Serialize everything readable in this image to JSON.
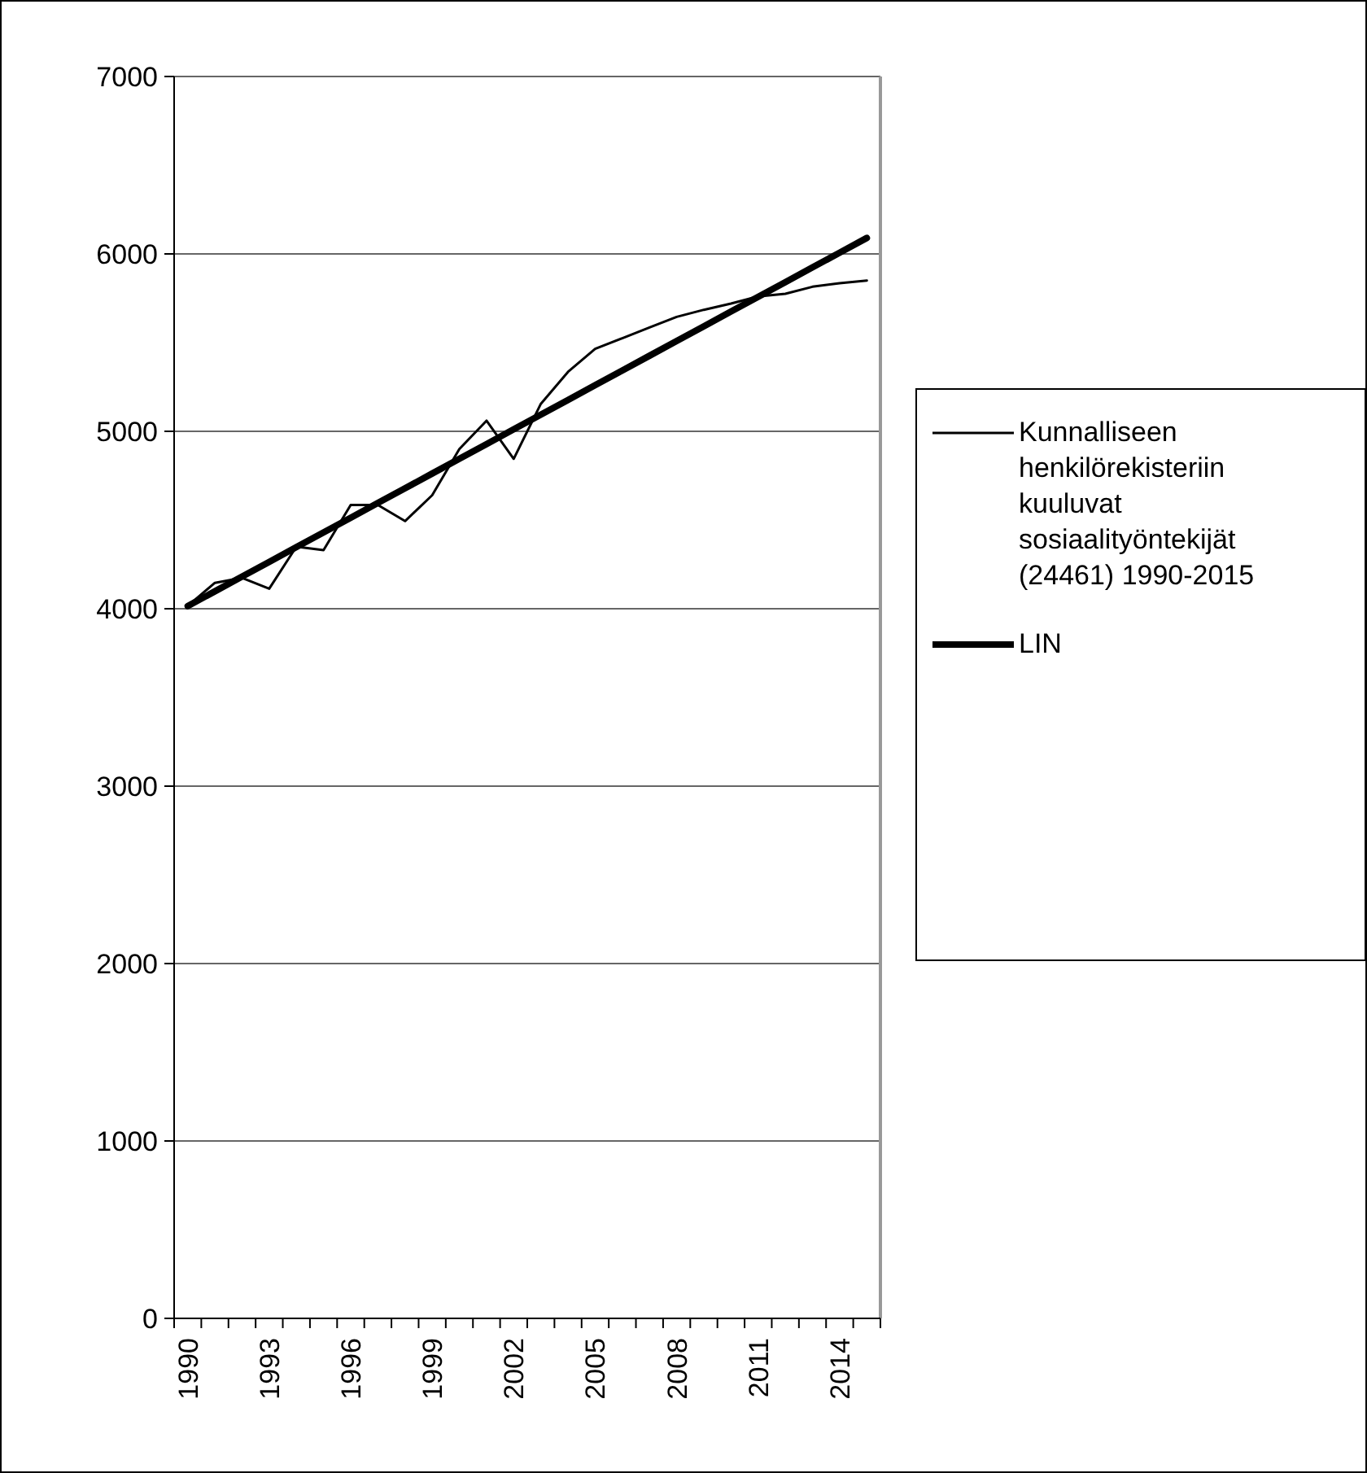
{
  "chart_data": {
    "type": "line",
    "categories": [
      "1990",
      null,
      null,
      "1993",
      null,
      null,
      "1996",
      null,
      null,
      "1999",
      null,
      null,
      "2002",
      null,
      null,
      "2005",
      null,
      null,
      "2008",
      null,
      null,
      "2011",
      null,
      null,
      "2014",
      null
    ],
    "series": [
      {
        "name": "Kunnalliseen henkilörekisteriin kuuluvat sosiaalityöntekijät (24461) 1990-2015",
        "color": "#000000",
        "values": [
          4015,
          4146,
          4174,
          4113,
          4350,
          4330,
          4585,
          4585,
          4494,
          4640,
          4900,
          5060,
          4845,
          5155,
          5335,
          5465,
          5525,
          5585,
          5645,
          5685,
          5720,
          5760,
          5775,
          5815,
          5835,
          5850
        ]
      },
      {
        "name": "LIN",
        "color": "#000000",
        "values": [
          4015,
          4098,
          4181,
          4264,
          4347,
          4430,
          4513,
          4596,
          4679,
          4762,
          4845,
          4928,
          5011,
          5094,
          5177,
          5260,
          5343,
          5426,
          5509,
          5592,
          5675,
          5758,
          5841,
          5924,
          6007,
          6090
        ]
      }
    ],
    "ylim": [
      0,
      7000
    ],
    "yticks": [
      0,
      1000,
      2000,
      3000,
      4000,
      5000,
      6000,
      7000
    ],
    "grid": "y",
    "legend": "right"
  }
}
